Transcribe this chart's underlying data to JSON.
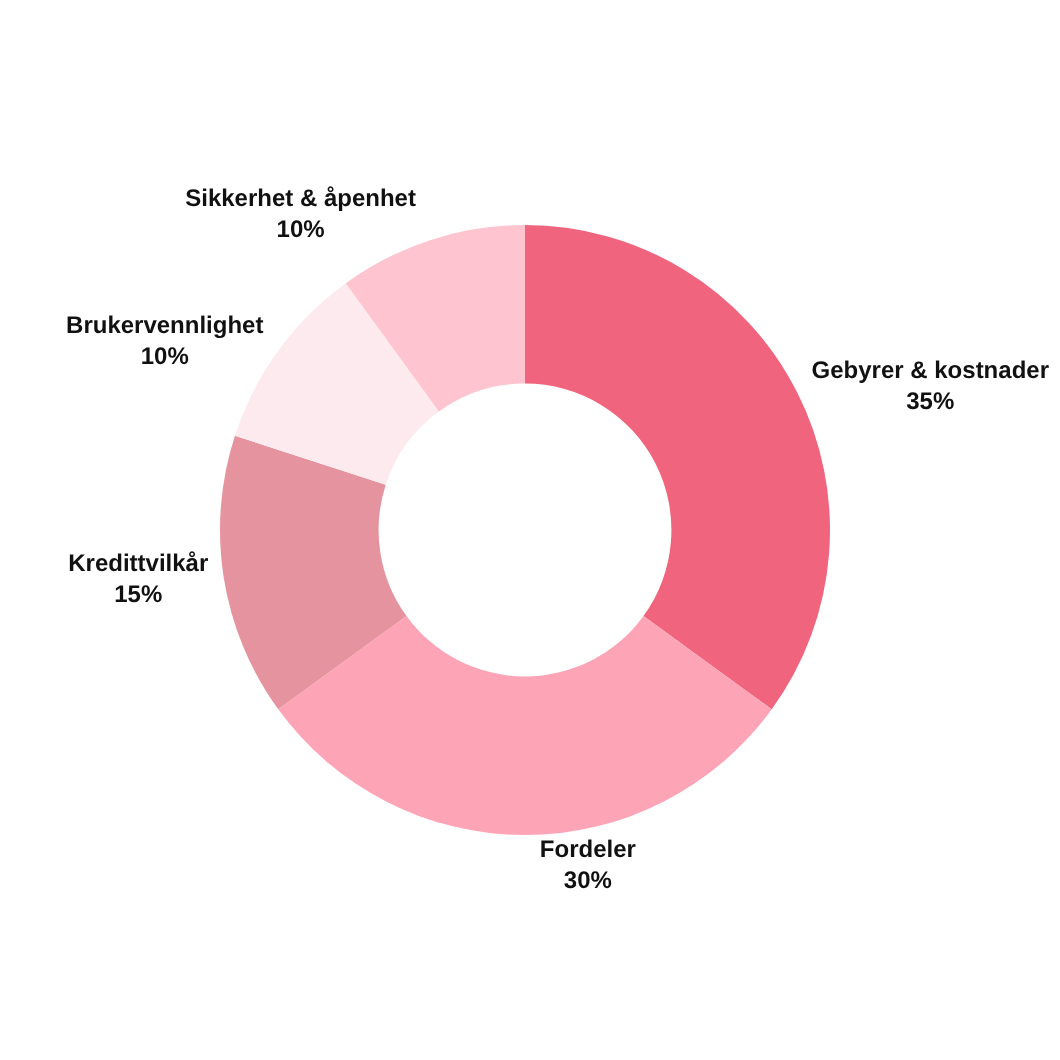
{
  "chart_data": {
    "type": "donut",
    "categories": [
      "Gebyrer & kostnader",
      "Fordeler",
      "Kredittvilkår",
      "Brukervennlighet",
      "Sikkerhet & åpenhet"
    ],
    "values": [
      35,
      30,
      15,
      10,
      10
    ],
    "value_labels": [
      "35%",
      "30%",
      "15%",
      "10%",
      "10%"
    ],
    "colors": [
      "#f0647d",
      "#fda4b6",
      "#e5949f",
      "#fdeaef",
      "#fec4cf"
    ],
    "legend": false
  }
}
